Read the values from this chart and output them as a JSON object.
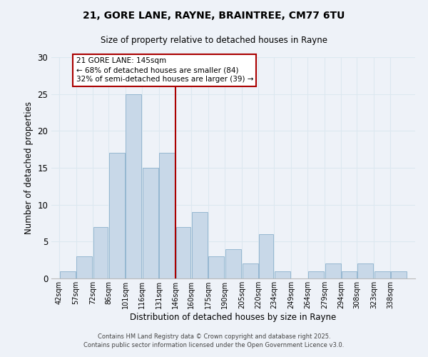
{
  "title": "21, GORE LANE, RAYNE, BRAINTREE, CM77 6TU",
  "subtitle": "Size of property relative to detached houses in Rayne",
  "xlabel": "Distribution of detached houses by size in Rayne",
  "ylabel": "Number of detached properties",
  "bar_color": "#c8d8e8",
  "bar_edge_color": "#8ab0cc",
  "bin_labels": [
    "42sqm",
    "57sqm",
    "72sqm",
    "86sqm",
    "101sqm",
    "116sqm",
    "131sqm",
    "146sqm",
    "160sqm",
    "175sqm",
    "190sqm",
    "205sqm",
    "220sqm",
    "234sqm",
    "249sqm",
    "264sqm",
    "279sqm",
    "294sqm",
    "308sqm",
    "323sqm",
    "338sqm"
  ],
  "bin_edges": [
    42,
    57,
    72,
    86,
    101,
    116,
    131,
    146,
    160,
    175,
    190,
    205,
    220,
    234,
    249,
    264,
    279,
    294,
    308,
    323,
    338,
    353
  ],
  "bar_heights": [
    1,
    3,
    7,
    17,
    25,
    15,
    17,
    7,
    9,
    3,
    4,
    2,
    6,
    1,
    0,
    1,
    2,
    1,
    2,
    1,
    1
  ],
  "vline_x": 146,
  "vline_color": "#aa0000",
  "annotation_title": "21 GORE LANE: 145sqm",
  "annotation_line1": "← 68% of detached houses are smaller (84)",
  "annotation_line2": "32% of semi-detached houses are larger (39) →",
  "annotation_box_color": "#ffffff",
  "annotation_box_edge": "#aa0000",
  "ylim": [
    0,
    30
  ],
  "yticks": [
    0,
    5,
    10,
    15,
    20,
    25,
    30
  ],
  "grid_color": "#dce8f0",
  "background_color": "#eef2f8",
  "footer1": "Contains HM Land Registry data © Crown copyright and database right 2025.",
  "footer2": "Contains public sector information licensed under the Open Government Licence v3.0."
}
